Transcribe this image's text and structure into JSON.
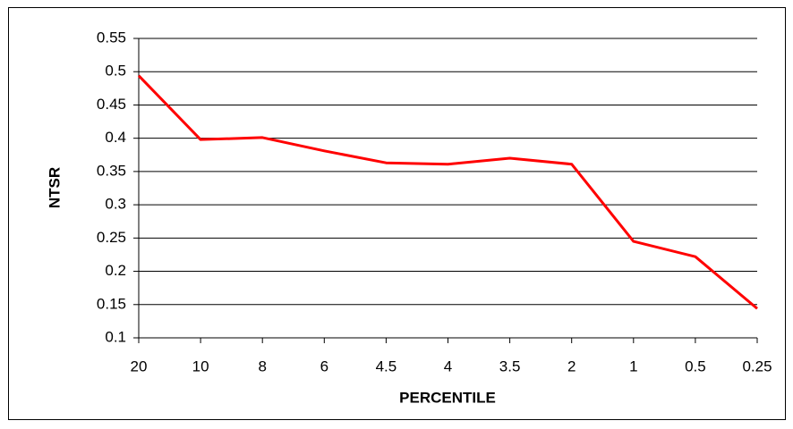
{
  "chart_data": {
    "type": "line",
    "x_label": "PERCENTILE",
    "y_label": "NTSR",
    "categories": [
      "20",
      "10",
      "8",
      "6",
      "4.5",
      "4",
      "3.5",
      "2",
      "1",
      "0.5",
      "0.25"
    ],
    "series": [
      {
        "name": "NTSR",
        "color": "#ff0000",
        "values": [
          0.494,
          0.398,
          0.401,
          0.381,
          0.363,
          0.361,
          0.37,
          0.361,
          0.245,
          0.222,
          0.144
        ]
      }
    ],
    "ylim": [
      0.1,
      0.55
    ],
    "yticks": [
      0.1,
      0.15,
      0.2,
      0.25,
      0.3,
      0.35,
      0.4,
      0.45,
      0.5,
      0.55
    ],
    "grid": true,
    "legend": false
  }
}
